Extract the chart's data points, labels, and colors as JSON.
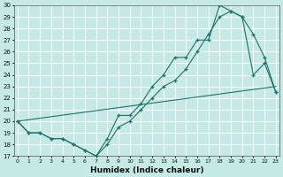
{
  "xlabel": "Humidex (Indice chaleur)",
  "bg_color": "#c5eae5",
  "grid_color": "#b0d8d2",
  "line_color": "#1e7268",
  "xlim": [
    0,
    23
  ],
  "ylim": [
    17,
    30
  ],
  "yticks": [
    17,
    18,
    19,
    20,
    21,
    22,
    23,
    24,
    25,
    26,
    27,
    28,
    29,
    30
  ],
  "xticks": [
    0,
    1,
    2,
    3,
    4,
    5,
    6,
    7,
    8,
    9,
    10,
    11,
    12,
    13,
    14,
    15,
    16,
    17,
    18,
    19,
    20,
    21,
    22,
    23
  ],
  "line1_x": [
    0,
    1,
    2,
    3,
    4,
    5,
    6,
    7,
    8,
    9,
    10,
    11,
    12,
    13,
    14,
    15,
    16,
    17,
    18,
    19,
    20,
    21,
    22,
    23
  ],
  "line1_y": [
    20,
    19,
    19,
    18.5,
    18.5,
    18,
    17.5,
    17,
    18.5,
    20.5,
    20.5,
    21.5,
    23,
    24,
    25.5,
    25.5,
    27,
    27,
    30,
    29.5,
    29,
    24,
    25,
    22.5
  ],
  "line2_x": [
    0,
    1,
    2,
    3,
    4,
    5,
    6,
    7,
    8,
    9,
    10,
    11,
    12,
    13,
    14,
    15,
    16,
    17,
    18,
    19,
    20,
    21,
    22,
    23
  ],
  "line2_y": [
    20,
    19,
    19,
    18.5,
    18.5,
    18,
    17.5,
    17,
    18,
    19.5,
    20,
    21,
    22,
    23,
    23.5,
    24.5,
    26,
    27.5,
    29,
    29.5,
    29,
    27.5,
    25.5,
    22.5
  ],
  "line3_x": [
    0,
    23
  ],
  "line3_y": [
    20,
    23
  ]
}
